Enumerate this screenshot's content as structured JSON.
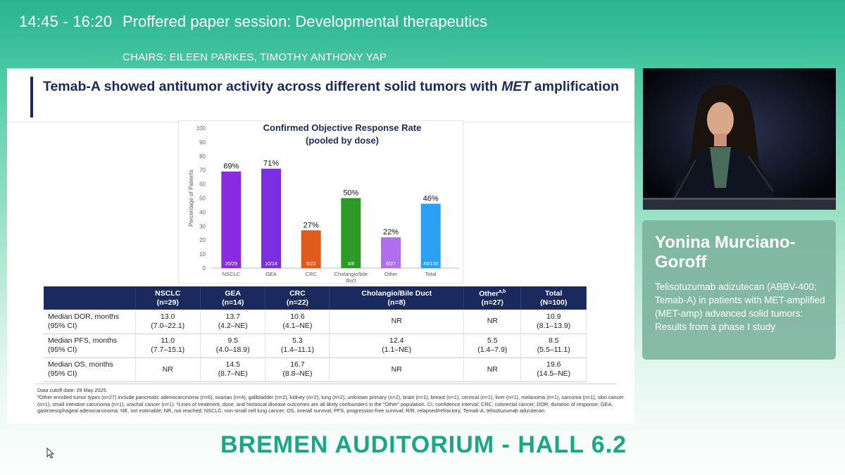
{
  "header": {
    "time": "14:45 - 16:20",
    "title": "Proffered paper session: Developmental therapeutics",
    "chairs": "CHAIRS: EILEEN PARKES, TIMOTHY ANTHONY YAP"
  },
  "slide": {
    "title_part1": "Temab-A showed antitumor activity across different solid tumors with ",
    "title_italic": "MET",
    "title_part2": " amplification"
  },
  "chart_data": {
    "type": "bar",
    "title": "Confirmed Objective Response Rate",
    "subtitle": "(pooled by dose)",
    "ylabel": "Percentage of Patients",
    "xlabel": "",
    "ylim": [
      0,
      100
    ],
    "yticks": [
      0,
      10,
      20,
      30,
      40,
      50,
      60,
      70,
      80,
      90,
      100
    ],
    "categories": [
      "NSCLC",
      "GEA",
      "CRC",
      "Cholangio/bile duct",
      "Other",
      "Total"
    ],
    "values": [
      69,
      71,
      27,
      50,
      22,
      46
    ],
    "value_labels": [
      "69%",
      "71%",
      "27%",
      "50%",
      "22%",
      "46%"
    ],
    "counts": [
      "20/29",
      "10/14",
      "6/22",
      "4/8",
      "6/27",
      "46/100"
    ],
    "colors": [
      "#8a2be2",
      "#7b2fe0",
      "#e05a1a",
      "#2e9a26",
      "#b070ee",
      "#2aa0f5"
    ],
    "grid": false
  },
  "table": {
    "headers": [
      {
        "l1": "",
        "l2": ""
      },
      {
        "l1": "NSCLC",
        "l2": "(n=29)"
      },
      {
        "l1": "GEA",
        "l2": "(n=14)"
      },
      {
        "l1": "CRC",
        "l2": "(n=22)"
      },
      {
        "l1": "Cholangio/Bile Duct",
        "l2": "(n=8)"
      },
      {
        "l1": "Other",
        "sup": "a,b",
        "l2": "(n=27)"
      },
      {
        "l1": "Total",
        "l2": "(N=100)"
      }
    ],
    "rows": [
      {
        "label1": "Median DOR, months",
        "label2": "(95% CI)",
        "cells": [
          [
            "13.0",
            "(7.0–22.1)"
          ],
          [
            "13.7",
            "(4.2–NE)"
          ],
          [
            "10.6",
            "(4.1–NE)"
          ],
          [
            "NR",
            ""
          ],
          [
            "NR",
            ""
          ],
          [
            "10.9",
            "(8.1–13.9)"
          ]
        ]
      },
      {
        "label1": "Median PFS, months",
        "label2": "(95% CI)",
        "cells": [
          [
            "11.0",
            "(7.7–15.1)"
          ],
          [
            "9.5",
            "(4.0–18.9)"
          ],
          [
            "5.3",
            "(1.4–11.1)"
          ],
          [
            "12.4",
            "(1.1–NE)"
          ],
          [
            "5.5",
            "(1.4–7.9)"
          ],
          [
            "8.5",
            "(5.5–11.1)"
          ]
        ]
      },
      {
        "label1": "Median OS, months",
        "label2": "(95% CI)",
        "cells": [
          [
            "NR",
            ""
          ],
          [
            "14.5",
            "(8.7–NE)"
          ],
          [
            "16.7",
            "(8.8–NE)"
          ],
          [
            "NR",
            ""
          ],
          [
            "NR",
            ""
          ],
          [
            "19.6",
            "(14.5–NE)"
          ]
        ]
      }
    ]
  },
  "footnotes": {
    "cutoff": "Data cutoff date: 29 May 2025.",
    "note": "ªOther enrolled tumor types (n=27) include pancreatic adenocarcinoma (n=6), ovarian (n=4), gallbladder (n=2), kidney (n=2), lung (n=2), unknown primary (n=2), brain (n=1), breast (n=1), cervical (n=1), liver (n=1), melanoma (n=1), sarcoma (n=1), skin cancer (n=1), small intestine carcinoma (n=1), urachal cancer (n=1). ᵇLines of treatment, dose, and historical disease outcomes are all likely confounders in the “Other” population. CI, confidence interval; CRC, colorectal cancer; DOR, duration of response; GEA, gastroesophageal adenocarcinoma; NE, not estimable; NR, not reached; NSCLC, non-small cell lung cancer; OS, overall survival; PFS, progression-free survival; R/R, relapsed/refractory; Temab-A, telisotuzumab adizutecan."
  },
  "speaker": {
    "name": "Yonina Murciano-Goroff",
    "talk": "Telisotuzumab adizutecan (ABBV-400; Temab-A) in patients with MET-amplified (MET-amp) advanced solid tumors: Results from a phase I study"
  },
  "venue": "BREMEN AUDITORIUM - HALL 6.2"
}
